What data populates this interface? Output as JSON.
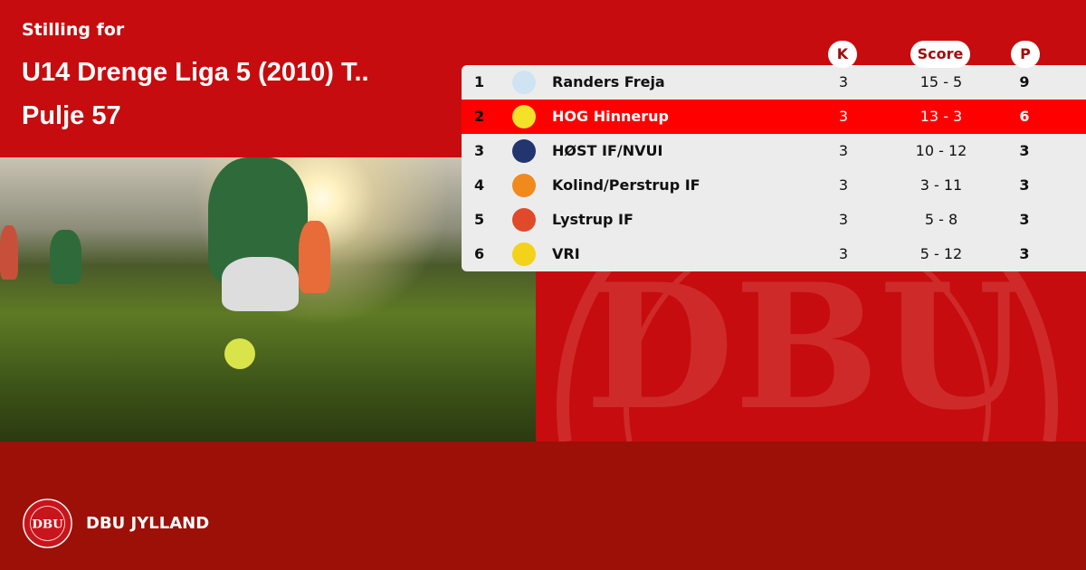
{
  "header": {
    "subtitle": "Stilling for",
    "title_line1": "U14 Drenge Liga 5 (2010) T..",
    "title_line2": "Pulje 57"
  },
  "table": {
    "columns": {
      "k": "K",
      "score": "Score",
      "p": "P"
    },
    "rows": [
      {
        "pos": "1",
        "team": "Randers Freja",
        "k": "3",
        "score": "15 - 5",
        "p": "9",
        "crest_color": "#cfe3f3",
        "highlight": false
      },
      {
        "pos": "2",
        "team": "HOG Hinnerup",
        "k": "3",
        "score": "13 - 3",
        "p": "6",
        "crest_color": "#f3e12a",
        "highlight": true
      },
      {
        "pos": "3",
        "team": "HØST IF/NVUI",
        "k": "3",
        "score": "10 - 12",
        "p": "3",
        "crest_color": "#23356f",
        "highlight": false
      },
      {
        "pos": "4",
        "team": "Kolind/Perstrup IF",
        "k": "3",
        "score": "3 - 11",
        "p": "3",
        "crest_color": "#f08a1c",
        "highlight": false
      },
      {
        "pos": "5",
        "team": "Lystrup IF",
        "k": "3",
        "score": "5 - 8",
        "p": "3",
        "crest_color": "#e04a2a",
        "highlight": false
      },
      {
        "pos": "6",
        "team": "VRI",
        "k": "3",
        "score": "5 - 12",
        "p": "3",
        "crest_color": "#f3d21a",
        "highlight": false
      }
    ]
  },
  "footer": {
    "brand": "DBU JYLLAND",
    "logo_text": "DBU"
  },
  "colors": {
    "primary": "#c60c0e",
    "footer": "#9c1008",
    "highlight": "#fe0000"
  }
}
